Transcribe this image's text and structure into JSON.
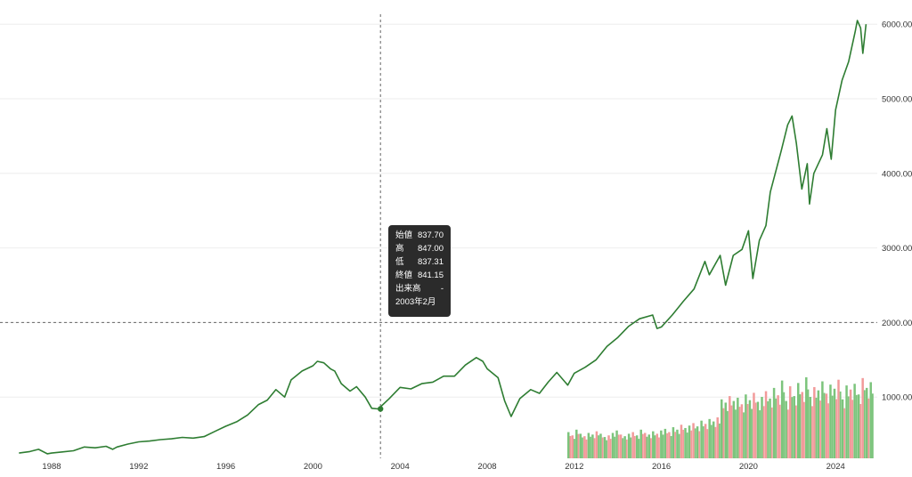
{
  "chart_data": {
    "type": "line",
    "x_tick_labels": [
      "1988",
      "1992",
      "1996",
      "2000",
      "2004",
      "2008",
      "2012",
      "2016",
      "2020",
      "2024"
    ],
    "y_tick_labels": [
      "1000.00",
      "2000.00",
      "3000.00",
      "4000.00",
      "5000.00",
      "6000.00"
    ],
    "ylim": [
      0,
      6200
    ],
    "xlim": [
      1986.3,
      2025.4
    ],
    "grid": "horizontal",
    "colors": {
      "line": "#2e7d32",
      "volume_up": "#7cc47c",
      "volume_down": "#f29a9a",
      "grid": "#eeeeee",
      "crosshair": "#666666",
      "tooltip_bg": "#2b2b2b"
    },
    "series": [
      {
        "values": [
          [
            1986.5,
            250
          ],
          [
            1987.0,
            270
          ],
          [
            1987.4,
            300
          ],
          [
            1987.8,
            240
          ],
          [
            1988.0,
            250
          ],
          [
            1988.5,
            265
          ],
          [
            1989.0,
            280
          ],
          [
            1989.5,
            330
          ],
          [
            1990.0,
            320
          ],
          [
            1990.5,
            340
          ],
          [
            1990.8,
            300
          ],
          [
            1991.0,
            330
          ],
          [
            1991.5,
            370
          ],
          [
            1992.0,
            400
          ],
          [
            1992.5,
            410
          ],
          [
            1993.0,
            430
          ],
          [
            1993.5,
            440
          ],
          [
            1994.0,
            460
          ],
          [
            1994.5,
            450
          ],
          [
            1995.0,
            470
          ],
          [
            1995.5,
            540
          ],
          [
            1996.0,
            610
          ],
          [
            1996.5,
            670
          ],
          [
            1997.0,
            760
          ],
          [
            1997.5,
            900
          ],
          [
            1997.9,
            960
          ],
          [
            1998.3,
            1100
          ],
          [
            1998.7,
            1000
          ],
          [
            1999.0,
            1230
          ],
          [
            1999.5,
            1350
          ],
          [
            2000.0,
            1420
          ],
          [
            2000.2,
            1480
          ],
          [
            2000.5,
            1460
          ],
          [
            2000.8,
            1380
          ],
          [
            2001.0,
            1350
          ],
          [
            2001.3,
            1180
          ],
          [
            2001.7,
            1080
          ],
          [
            2002.0,
            1140
          ],
          [
            2002.4,
            1000
          ],
          [
            2002.7,
            850
          ],
          [
            2003.0,
            841
          ],
          [
            2003.5,
            980
          ],
          [
            2004.0,
            1130
          ],
          [
            2004.5,
            1110
          ],
          [
            2005.0,
            1180
          ],
          [
            2005.5,
            1200
          ],
          [
            2006.0,
            1280
          ],
          [
            2006.5,
            1280
          ],
          [
            2007.0,
            1430
          ],
          [
            2007.5,
            1530
          ],
          [
            2007.8,
            1480
          ],
          [
            2008.0,
            1380
          ],
          [
            2008.5,
            1260
          ],
          [
            2008.8,
            950
          ],
          [
            2009.1,
            740
          ],
          [
            2009.5,
            980
          ],
          [
            2010.0,
            1100
          ],
          [
            2010.4,
            1050
          ],
          [
            2010.8,
            1200
          ],
          [
            2011.2,
            1330
          ],
          [
            2011.7,
            1160
          ],
          [
            2012.0,
            1320
          ],
          [
            2012.5,
            1400
          ],
          [
            2013.0,
            1500
          ],
          [
            2013.5,
            1680
          ],
          [
            2014.0,
            1800
          ],
          [
            2014.5,
            1950
          ],
          [
            2015.0,
            2050
          ],
          [
            2015.6,
            2100
          ],
          [
            2015.8,
            1920
          ],
          [
            2016.0,
            1940
          ],
          [
            2016.5,
            2100
          ],
          [
            2017.0,
            2280
          ],
          [
            2017.5,
            2450
          ],
          [
            2018.0,
            2820
          ],
          [
            2018.2,
            2640
          ],
          [
            2018.7,
            2900
          ],
          [
            2018.95,
            2500
          ],
          [
            2019.3,
            2900
          ],
          [
            2019.7,
            2980
          ],
          [
            2020.0,
            3230
          ],
          [
            2020.2,
            2590
          ],
          [
            2020.5,
            3100
          ],
          [
            2020.8,
            3300
          ],
          [
            2021.0,
            3750
          ],
          [
            2021.5,
            4300
          ],
          [
            2021.8,
            4650
          ],
          [
            2022.0,
            4770
          ],
          [
            2022.2,
            4400
          ],
          [
            2022.45,
            3790
          ],
          [
            2022.7,
            4130
          ],
          [
            2022.8,
            3590
          ],
          [
            2023.0,
            4000
          ],
          [
            2023.4,
            4250
          ],
          [
            2023.6,
            4600
          ],
          [
            2023.8,
            4190
          ],
          [
            2024.0,
            4850
          ],
          [
            2024.3,
            5250
          ],
          [
            2024.6,
            5500
          ],
          [
            2024.9,
            5900
          ],
          [
            2025.0,
            6050
          ],
          [
            2025.15,
            5950
          ],
          [
            2025.25,
            5610
          ],
          [
            2025.4,
            6000
          ]
        ]
      }
    ],
    "volume_bars": [
      0.32,
      0.28,
      0.35,
      0.3,
      0.27,
      0.31,
      0.29,
      0.33,
      0.3,
      0.26,
      0.28,
      0.31,
      0.34,
      0.29,
      0.27,
      0.3,
      0.32,
      0.28,
      0.35,
      0.31,
      0.29,
      0.33,
      0.3,
      0.34,
      0.36,
      0.32,
      0.38,
      0.35,
      0.41,
      0.37,
      0.4,
      0.43,
      0.39,
      0.46,
      0.42,
      0.48,
      0.45,
      0.5,
      0.72,
      0.68,
      0.76,
      0.7,
      0.74,
      0.66,
      0.78,
      0.71,
      0.8,
      0.69,
      0.75,
      0.82,
      0.73,
      0.86,
      0.77,
      0.95,
      0.7,
      0.88,
      0.76,
      0.92,
      0.81,
      0.99,
      0.75,
      0.87,
      0.83,
      0.94,
      0.79,
      0.9,
      0.85,
      0.96,
      0.72,
      0.89,
      0.84,
      0.91,
      0.78,
      0.98,
      0.86,
      0.93
    ],
    "cursor": {
      "date": "2003年2月",
      "open": "837.70",
      "high": "847.00",
      "low": "837.31",
      "close": "841.15",
      "volume": "-"
    }
  },
  "tooltip": {
    "open_label": "始値",
    "open_value": "837.70",
    "high_label": "高",
    "high_value": "847.00",
    "low_label": "低",
    "low_value": "837.31",
    "close_label": "終値",
    "close_value": "841.15",
    "volume_label": "出来高",
    "volume_value": "-",
    "date": "2003年2月"
  }
}
